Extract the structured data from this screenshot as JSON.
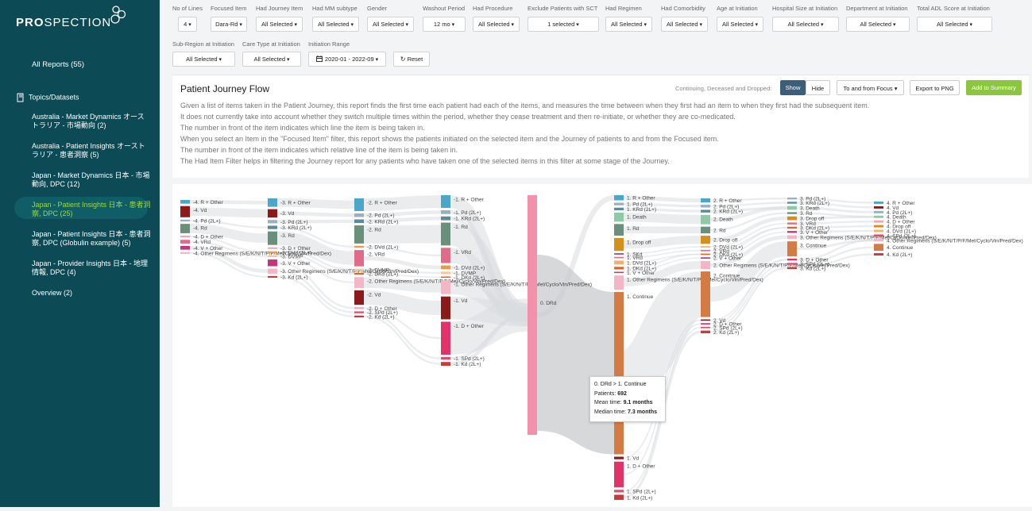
{
  "brand": {
    "name_bold": "PRO",
    "name_rest": "SPECTION"
  },
  "sidebar": {
    "all_reports": "All Reports (55)",
    "topics_label": "Topics/Datasets",
    "items": [
      "Australia - Market Dynamics オーストラリア - 市場動向 (2)",
      "Australia - Patient Insights オーストラリア - 患者洞察 (5)",
      "Japan - Market Dynamics 日本 - 市場動向, DPC (12)",
      "Japan - Patient Insights 日本 - 患者洞察, DPC (25)",
      "Japan - Patient Insights 日本 - 患者洞察, DPC (Globulin example) (5)",
      "Japan - Provider Insights 日本 - 地理情報, DPC (4)",
      "Overview (2)"
    ]
  },
  "filters": {
    "row1": [
      {
        "label": "No of Lines",
        "value": "4"
      },
      {
        "label": "Focused Item",
        "value": "Dara-Rd"
      },
      {
        "label": "Had Journey Item",
        "value": "All Selected"
      },
      {
        "label": "Had MM subtype",
        "value": "All Selected"
      },
      {
        "label": "Gender",
        "value": "All Selected"
      },
      {
        "label": "Washout Period",
        "value": "12 mo"
      },
      {
        "label": "Had Procedure",
        "value": "All Selected"
      },
      {
        "label": "Exclude Patients with SCT",
        "value": "1 selected"
      },
      {
        "label": "Had Regimen",
        "value": "All Selected"
      },
      {
        "label": "Had Comorbidity",
        "value": "All Selected"
      },
      {
        "label": "Age at Initiation",
        "value": "All Selected"
      },
      {
        "label": "Hospital Size at Initiation",
        "value": "All Selected"
      },
      {
        "label": "Department at Initiation",
        "value": "All Selected"
      },
      {
        "label": "Total ADL Score at Initiation",
        "value": "All Selected"
      }
    ],
    "row2": [
      {
        "label": "Sub-Region at Initiation",
        "value": "All Selected"
      },
      {
        "label": "Care Type at Initiation",
        "value": "All Selected"
      },
      {
        "label": "Initiation Range",
        "value": "2020-01 - 2022-09"
      }
    ],
    "reset_label": "Reset"
  },
  "panel": {
    "title": "Patient Journey Flow",
    "toggle_label": "Continuing, Deceased and Dropped:",
    "show": "Show",
    "hide": "Hide",
    "direction": "To and from Focus",
    "export": "Export to PNG",
    "add_summary": "Add to Summary",
    "description": [
      "Given a list of items taken in the Patient Journey, this report finds the first time each patient had each of the items, and measures the time between when they first had an item to when they first had the subsequent item.",
      "It does not currently take into account whether they switch multiple times within the period, whether they cease treatment and then re-initiate, or whether they are co-medicated.",
      "The number in front of the item indicates which line the item is being taken in.",
      "When you select an Item in the \"Focused Item\" filter, this report shows the patients initiated on the selected item and the Journey of patients to and from the Focused item.",
      "The number in front of the item indicates which relative line of the item is being taken in.",
      "The Had Item Filter helps in filtering the Journey report for any patients who have taken one of the selected items in this filter at some stage of the Journey."
    ]
  },
  "chart_data": {
    "type": "sankey",
    "focus": "0. DRd",
    "columns": [
      {
        "line": -4,
        "nodes": [
          {
            "label": "-4. R + Other",
            "color": "#4aa7c8",
            "size": 2
          },
          {
            "label": "-4. Vd",
            "color": "#8b1a1a",
            "size": 6
          },
          {
            "label": "-4. Pd (2L+)",
            "color": "#9ab0bf",
            "size": 1
          },
          {
            "label": "-4. Rd",
            "color": "#6a8f7a",
            "size": 5
          },
          {
            "label": "-4. D + Other",
            "color": "#f2a6b8",
            "size": 1
          },
          {
            "label": "-4. VRd",
            "color": "#e06b8a",
            "size": 2
          },
          {
            "label": "-4. V + Other",
            "color": "#c2367a",
            "size": 2
          },
          {
            "label": "-4. Other Regimens (S/E/K/N/T/P/F/Mel/Cyclo/Vin/Pred/Dex)",
            "color": "#f4b6c6",
            "size": 1
          }
        ]
      },
      {
        "line": -3,
        "nodes": [
          {
            "label": "-3. R + Other",
            "color": "#4aa7c8",
            "size": 5
          },
          {
            "label": "-3. Vd",
            "color": "#8b1a1a",
            "size": 5
          },
          {
            "label": "-3. Pd (2L+)",
            "color": "#9ab0bf",
            "size": 2
          },
          {
            "label": "-3. KRd (2L+)",
            "color": "#5a8a9c",
            "size": 2
          },
          {
            "label": "-3. Rd",
            "color": "#6a8f7a",
            "size": 8
          },
          {
            "label": "-3. D + Other",
            "color": "#f2a6b8",
            "size": 1
          },
          {
            "label": "-3. DVd (2L+)",
            "color": "#e89a4a",
            "size": 1
          },
          {
            "label": "-3. DVMP",
            "color": "#f7c6a0",
            "size": 1
          },
          {
            "label": "-3. V + Other",
            "color": "#c2367a",
            "size": 4
          },
          {
            "label": "-3. Other Regimens (S/E/K/N/T/P/F/Mel/Cyclo/Vin/Pred/Dex)",
            "color": "#f4b6c6",
            "size": 3
          },
          {
            "label": "-3. Kd (2L+)",
            "color": "#c93a3a",
            "size": 1
          }
        ]
      },
      {
        "line": -2,
        "nodes": [
          {
            "label": "-2. R + Other",
            "color": "#4aa7c8",
            "size": 7
          },
          {
            "label": "-2. Pd (2L+)",
            "color": "#9ab0bf",
            "size": 2
          },
          {
            "label": "-2. KRd (2L+)",
            "color": "#5a8a9c",
            "size": 2
          },
          {
            "label": "-2. Rd",
            "color": "#6a8f7a",
            "size": 10
          },
          {
            "label": "-2. DVd (2L+)",
            "color": "#e89a4a",
            "size": 1
          },
          {
            "label": "-2. VRd",
            "color": "#e06b8a",
            "size": 9
          },
          {
            "label": "-2. DVMP",
            "color": "#f7c6a0",
            "size": 1
          },
          {
            "label": "-2. DKd (2L+)",
            "color": "#d46a2a",
            "size": 1
          },
          {
            "label": "-2. Other Regimens (S/E/K/N/T/P/F/Mel/Cyclo/Vin/Pred/Dex)",
            "color": "#f4b6c6",
            "size": 6
          },
          {
            "label": "-2. Vd",
            "color": "#8b1a1a",
            "size": 8
          },
          {
            "label": "-2. D + Other",
            "color": "#f2a6b8",
            "size": 1
          },
          {
            "label": "-2. SPd (2L+)",
            "color": "#e64a6a",
            "size": 1
          },
          {
            "label": "-2. Kd (2L+)",
            "color": "#c93a3a",
            "size": 1
          }
        ]
      },
      {
        "line": -1,
        "nodes": [
          {
            "label": "-1. R + Other",
            "color": "#4aa7c8",
            "size": 10
          },
          {
            "label": "-1. Pd (2L+)",
            "color": "#9ab0bf",
            "size": 3
          },
          {
            "label": "-1. KRd (2L+)",
            "color": "#5a8a9c",
            "size": 3
          },
          {
            "label": "-1. Rd",
            "color": "#6a8f7a",
            "size": 18
          },
          {
            "label": "-1. VRd",
            "color": "#e06b8a",
            "size": 12
          },
          {
            "label": "-1. DVd (2L+)",
            "color": "#e89a4a",
            "size": 3
          },
          {
            "label": "-1. DVMP",
            "color": "#f7c6a0",
            "size": 2
          },
          {
            "label": "-1. DKd (2L+)",
            "color": "#d46a2a",
            "size": 1
          },
          {
            "label": "-1. Other Regimens (S/E/K/N/T/P/F/Mel/Cyclo/Vin/Pred/Dex)",
            "color": "#f4b6c6",
            "size": 11
          },
          {
            "label": "-1. Vd",
            "color": "#8b1a1a",
            "size": 18
          },
          {
            "label": "-1. D + Other",
            "color": "#e0336a",
            "size": 26
          },
          {
            "label": "-1. SPd (2L+)",
            "color": "#e64a6a",
            "size": 2
          },
          {
            "label": "-1. Kd (2L+)",
            "color": "#c93a3a",
            "size": 3
          }
        ]
      },
      {
        "line": 0,
        "nodes": [
          {
            "label": "0. DRd",
            "color": "#f390ac",
            "size": 200
          }
        ]
      },
      {
        "line": 1,
        "nodes": [
          {
            "label": "1. R + Other",
            "color": "#4aa7c8",
            "size": 4
          },
          {
            "label": "1. Pd (2L+)",
            "color": "#9ab0bf",
            "size": 2
          },
          {
            "label": "1. KRd (2L+)",
            "color": "#5a8a9c",
            "size": 2
          },
          {
            "label": "1. Death",
            "color": "#8fcaa8",
            "size": 7
          },
          {
            "label": "1. Rd",
            "color": "#6a8f7a",
            "size": 9
          },
          {
            "label": "1. Drop off",
            "color": "#d4901c",
            "size": 10
          },
          {
            "label": "1. SKd",
            "color": "#a23a5a",
            "size": 1
          },
          {
            "label": "1. VRd",
            "color": "#e06b8a",
            "size": 1
          },
          {
            "label": "1. DVd (2L+)",
            "color": "#f0b070",
            "size": 3
          },
          {
            "label": "1. DKd (2L+)",
            "color": "#d46a2a",
            "size": 2
          },
          {
            "label": "1. V + Other",
            "color": "#c2367a",
            "size": 1
          },
          {
            "label": "1. Other Regimens (S/E/K/N/T/P/F/Mel/Cyclo/Vin/Pred/Dex)",
            "color": "#f4b6c6",
            "size": 11
          },
          {
            "label": "1. Continue",
            "color": "#d37a45",
            "size": 126
          },
          {
            "label": "1. Vd",
            "color": "#8b1a1a",
            "size": 2
          },
          {
            "label": "1. D + Other",
            "color": "#e0336a",
            "size": 20
          },
          {
            "label": "1. SPd (2L+)",
            "color": "#e64a6a",
            "size": 2
          },
          {
            "label": "1. Kd (2L+)",
            "color": "#c93a3a",
            "size": 4
          }
        ]
      },
      {
        "line": 2,
        "nodes": [
          {
            "label": "2. R + Other",
            "color": "#4aa7c8",
            "size": 3
          },
          {
            "label": "2. Pd (2L+)",
            "color": "#9ab0bf",
            "size": 2
          },
          {
            "label": "2. KRd (2L+)",
            "color": "#5a8a9c",
            "size": 2
          },
          {
            "label": "2. Death",
            "color": "#8fcaa8",
            "size": 7
          },
          {
            "label": "2. Rd",
            "color": "#6a8f7a",
            "size": 5
          },
          {
            "label": "2. Drop off",
            "color": "#d4901c",
            "size": 6
          },
          {
            "label": "2. DVd (2L+)",
            "color": "#f0b070",
            "size": 1
          },
          {
            "label": "2. VRd",
            "color": "#e06b8a",
            "size": 1
          },
          {
            "label": "2. DKd (2L+)",
            "color": "#d46a2a",
            "size": 1
          },
          {
            "label": "2. V + Other",
            "color": "#c2367a",
            "size": 1
          },
          {
            "label": "2. Other Regimens (S/E/K/N/T/P/F/Mel/Cyclo/Vin/Pred/Dex)",
            "color": "#f4b6c6",
            "size": 6
          },
          {
            "label": "2. Continue",
            "color": "#d37a45",
            "size": 34
          },
          {
            "label": "2. Vd",
            "color": "#8b1a1a",
            "size": 1
          },
          {
            "label": "2. D + Other",
            "color": "#e0336a",
            "size": 1
          },
          {
            "label": "2. SPd (2L+)",
            "color": "#e64a6a",
            "size": 1
          },
          {
            "label": "2. Kd (2L+)",
            "color": "#c93a3a",
            "size": 2
          }
        ]
      },
      {
        "line": 3,
        "nodes": [
          {
            "label": "3. Pd (2L+)",
            "color": "#9ab0bf",
            "size": 1
          },
          {
            "label": "3. KRd (2L+)",
            "color": "#5a8a9c",
            "size": 1
          },
          {
            "label": "3. Death",
            "color": "#8fcaa8",
            "size": 2
          },
          {
            "label": "3. Rd",
            "color": "#6a8f7a",
            "size": 1
          },
          {
            "label": "3. Drop off",
            "color": "#d4901c",
            "size": 2
          },
          {
            "label": "3. VRd",
            "color": "#e06b8a",
            "size": 1
          },
          {
            "label": "3. DKd (2L+)",
            "color": "#d46a2a",
            "size": 1
          },
          {
            "label": "3. V + Other",
            "color": "#c2367a",
            "size": 1
          },
          {
            "label": "3. Other Regimens (S/E/K/N/T/P/F/Mel/Cyclo/Vin/Pred/Dex)",
            "color": "#f4b6c6",
            "size": 2
          },
          {
            "label": "3. Continue",
            "color": "#d37a45",
            "size": 8
          },
          {
            "label": "3. D + Other",
            "color": "#e0336a",
            "size": 1
          },
          {
            "label": "3. SPd (2L+)",
            "color": "#e64a6a",
            "size": 1
          },
          {
            "label": "3. Kd (2L+)",
            "color": "#c93a3a",
            "size": 1
          }
        ]
      },
      {
        "line": 4,
        "nodes": [
          {
            "label": "4. R + Other",
            "color": "#4aa7c8",
            "size": 1
          },
          {
            "label": "4. Vd",
            "color": "#8b1a1a",
            "size": 1
          },
          {
            "label": "4. Pd (2L+)",
            "color": "#9ab0bf",
            "size": 1
          },
          {
            "label": "4. Death",
            "color": "#8fcaa8",
            "size": 1
          },
          {
            "label": "4. D + Other",
            "color": "#f2a6b8",
            "size": 1
          },
          {
            "label": "4. Drop off",
            "color": "#d4901c",
            "size": 1
          },
          {
            "label": "4. DVd (2L+)",
            "color": "#f0b070",
            "size": 1
          },
          {
            "label": "4. SPd (2L+)",
            "color": "#e64a6a",
            "size": 1
          },
          {
            "label": "4. Other Regimens (S/E/K/N/T/P/F/Mel/Cyclo/Vin/Pred/Dex)",
            "color": "#f4b6c6",
            "size": 1
          },
          {
            "label": "4. Continue",
            "color": "#d37a45",
            "size": 3
          },
          {
            "label": "4. Kd (2L+)",
            "color": "#c93a3a",
            "size": 1
          }
        ]
      }
    ],
    "tooltip": {
      "title": "0. DRd > 1. Continue",
      "patients_label": "Patients:",
      "patients": "692",
      "mean_label": "Mean time:",
      "mean": "9.1 months",
      "median_label": "Median time:",
      "median": "7.3 months"
    }
  }
}
